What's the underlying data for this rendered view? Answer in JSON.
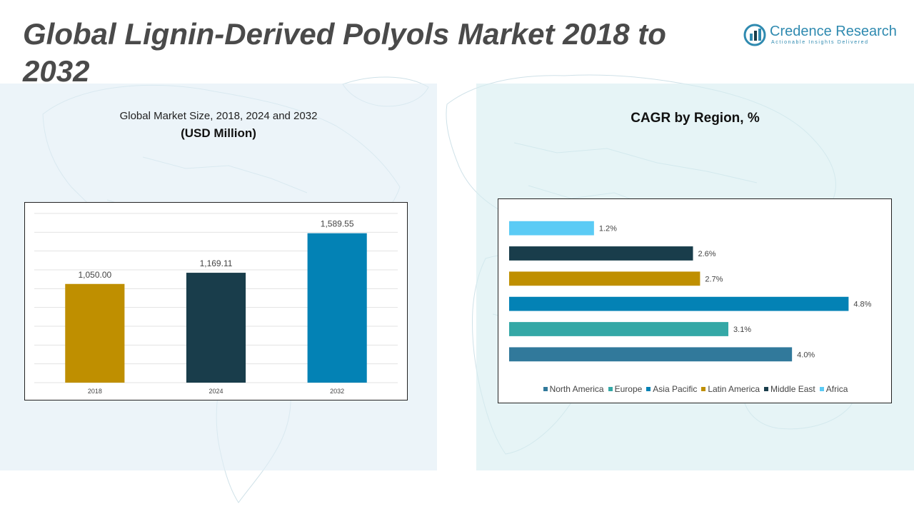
{
  "title": "Global Lignin-Derived Polyols Market 2018 to 2032",
  "logo": {
    "name": "Credence Research",
    "tagline": "Actionable Insights Delivered",
    "color": "#2f8ab0"
  },
  "left_panel": {
    "subtitle": "Global Market Size, 2018, 2024 and 2032",
    "unit": "(USD Million)"
  },
  "right_panel": {
    "title": "CAGR by Region, %"
  },
  "chart_data": [
    {
      "type": "bar",
      "categories": [
        "2018",
        "2024",
        "2032"
      ],
      "values": [
        1050.0,
        1169.11,
        1589.55
      ],
      "value_labels": [
        "1,050.00",
        "1,169.11",
        "1,589.55"
      ],
      "colors": [
        "#bf8f00",
        "#193d4b",
        "#0382b5"
      ],
      "ylim": [
        0,
        1800
      ],
      "grid": true,
      "title": "",
      "xlabel": "",
      "ylabel": ""
    },
    {
      "type": "bar",
      "orientation": "horizontal",
      "categories": [
        "North America",
        "Europe",
        "Asia Pacific",
        "Latin America",
        "Middle East",
        "Africa"
      ],
      "values": [
        4.0,
        3.1,
        4.8,
        2.7,
        2.6,
        1.2
      ],
      "value_labels": [
        "4.0%",
        "3.1%",
        "4.8%",
        "2.7%",
        "2.6%",
        "1.2%"
      ],
      "colors": [
        "#31799b",
        "#34a8a6",
        "#0382b5",
        "#bf8f00",
        "#193d4b",
        "#5bcbf5"
      ],
      "xlim": [
        0,
        5.2
      ],
      "legend_position": "bottom",
      "grid": false,
      "title": "",
      "xlabel": "",
      "ylabel": ""
    }
  ]
}
